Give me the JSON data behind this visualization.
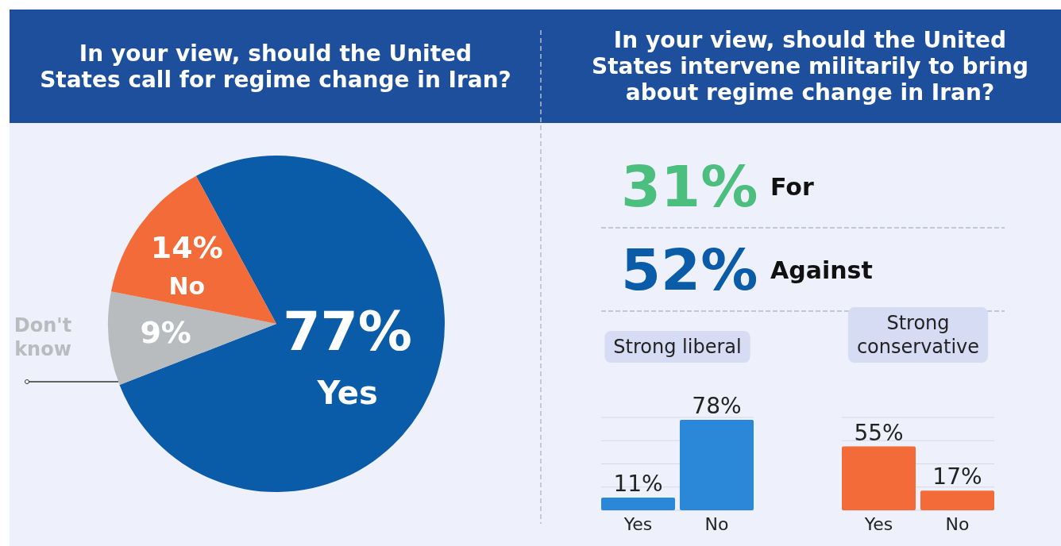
{
  "chart_data": [
    {
      "type": "pie",
      "title": "In your view, should the United States call for regime change in Iran?",
      "categories": [
        "Yes",
        "Don't know",
        "No"
      ],
      "values": [
        77,
        9,
        14
      ],
      "colors": [
        "#0a5ca8",
        "#b9bcbf",
        "#f26b38"
      ],
      "value_labels": [
        "77%",
        "9%",
        "14%"
      ]
    },
    {
      "type": "other",
      "title": "In your view, should the United States intervene militarily to bring about regime change in Iran?",
      "categories": [
        "For",
        "Against"
      ],
      "values": [
        31,
        52
      ],
      "colors": [
        "#4cbf7f",
        "#0a5ca8"
      ],
      "value_labels": [
        "31%",
        "52%"
      ]
    },
    {
      "type": "bar",
      "title": "Strong liberal",
      "categories": [
        "Yes",
        "No"
      ],
      "values": [
        11,
        78
      ],
      "color": "#2b87d8",
      "value_labels": [
        "11%",
        "78%"
      ],
      "ylim": [
        0,
        80
      ],
      "yticks": [
        {
          "value": 0,
          "label": null
        },
        {
          "value": 20,
          "label": null
        },
        {
          "value": 40,
          "label": null
        },
        {
          "value": 60,
          "label": null
        },
        {
          "value": 80,
          "label": null
        }
      ],
      "grid": "y",
      "tick_labels": "x"
    },
    {
      "type": "bar",
      "title": "Strong conservative",
      "categories": [
        "Yes",
        "No"
      ],
      "values": [
        55,
        17
      ],
      "color": "#f26b38",
      "value_labels": [
        "55%",
        "17%"
      ],
      "ylim": [
        0,
        80
      ],
      "yticks": [
        {
          "value": 0,
          "label": null
        },
        {
          "value": 20,
          "label": null
        },
        {
          "value": 40,
          "label": null
        },
        {
          "value": 60,
          "label": null
        },
        {
          "value": 80,
          "label": null
        }
      ],
      "grid": "y",
      "tick_labels": "x"
    }
  ]
}
